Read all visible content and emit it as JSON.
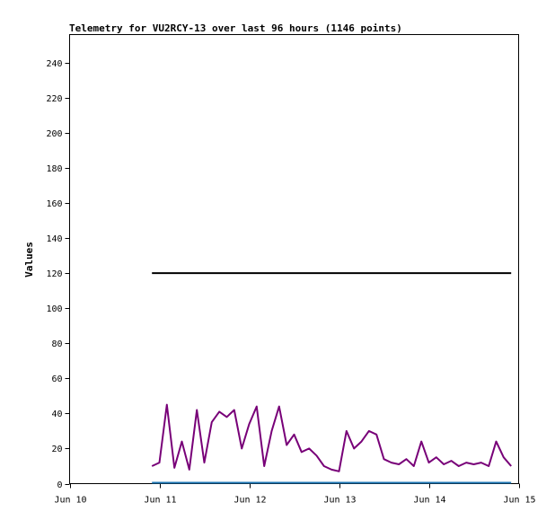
{
  "chart_data": {
    "type": "line",
    "title": "Telemetry for VU2RCY-13 over last 96 hours (1146 points)",
    "xlabel": "",
    "ylabel": "Values",
    "xlim": [
      "Jun 10",
      "Jun 15"
    ],
    "ylim": [
      0,
      256
    ],
    "grid": false,
    "legend": "none",
    "x_ticks": [
      "Jun 10",
      "Jun 11",
      "Jun 12",
      "Jun 13",
      "Jun 14",
      "Jun 15"
    ],
    "y_ticks": [
      0,
      20,
      40,
      60,
      80,
      100,
      120,
      140,
      160,
      180,
      200,
      220,
      240
    ],
    "series": [
      {
        "color": "#000000",
        "points": [
          [
            "Jun 10 22:00",
            120
          ],
          [
            "Jun 14 22:00",
            120
          ]
        ]
      },
      {
        "color": "#780078",
        "points": [
          [
            "Jun 10 22:00",
            10
          ],
          [
            "Jun 11 00:00",
            12
          ],
          [
            "Jun 11 02:00",
            45
          ],
          [
            "Jun 11 04:00",
            9
          ],
          [
            "Jun 11 06:00",
            24
          ],
          [
            "Jun 11 08:00",
            8
          ],
          [
            "Jun 11 10:00",
            42
          ],
          [
            "Jun 11 12:00",
            12
          ],
          [
            "Jun 11 14:00",
            35
          ],
          [
            "Jun 11 16:00",
            41
          ],
          [
            "Jun 11 18:00",
            38
          ],
          [
            "Jun 11 20:00",
            42
          ],
          [
            "Jun 11 22:00",
            20
          ],
          [
            "Jun 12 00:00",
            34
          ],
          [
            "Jun 12 02:00",
            44
          ],
          [
            "Jun 12 04:00",
            10
          ],
          [
            "Jun 12 06:00",
            30
          ],
          [
            "Jun 12 08:00",
            44
          ],
          [
            "Jun 12 10:00",
            22
          ],
          [
            "Jun 12 12:00",
            28
          ],
          [
            "Jun 12 14:00",
            18
          ],
          [
            "Jun 12 16:00",
            20
          ],
          [
            "Jun 12 18:00",
            16
          ],
          [
            "Jun 12 20:00",
            10
          ],
          [
            "Jun 12 22:00",
            8
          ],
          [
            "Jun 13 00:00",
            7
          ],
          [
            "Jun 13 02:00",
            30
          ],
          [
            "Jun 13 04:00",
            20
          ],
          [
            "Jun 13 06:00",
            24
          ],
          [
            "Jun 13 08:00",
            30
          ],
          [
            "Jun 13 10:00",
            28
          ],
          [
            "Jun 13 12:00",
            14
          ],
          [
            "Jun 13 14:00",
            12
          ],
          [
            "Jun 13 16:00",
            11
          ],
          [
            "Jun 13 18:00",
            14
          ],
          [
            "Jun 13 20:00",
            10
          ],
          [
            "Jun 13 22:00",
            24
          ],
          [
            "Jun 14 00:00",
            12
          ],
          [
            "Jun 14 02:00",
            15
          ],
          [
            "Jun 14 04:00",
            11
          ],
          [
            "Jun 14 06:00",
            13
          ],
          [
            "Jun 14 08:00",
            10
          ],
          [
            "Jun 14 10:00",
            12
          ],
          [
            "Jun 14 12:00",
            11
          ],
          [
            "Jun 14 14:00",
            12
          ],
          [
            "Jun 14 16:00",
            10
          ],
          [
            "Jun 14 18:00",
            24
          ],
          [
            "Jun 14 20:00",
            15
          ],
          [
            "Jun 14 22:00",
            10
          ]
        ]
      },
      {
        "color": "#1f77b4",
        "points": [
          [
            "Jun 10 22:00",
            0.5
          ],
          [
            "Jun 14 22:00",
            0.5
          ]
        ]
      }
    ]
  }
}
